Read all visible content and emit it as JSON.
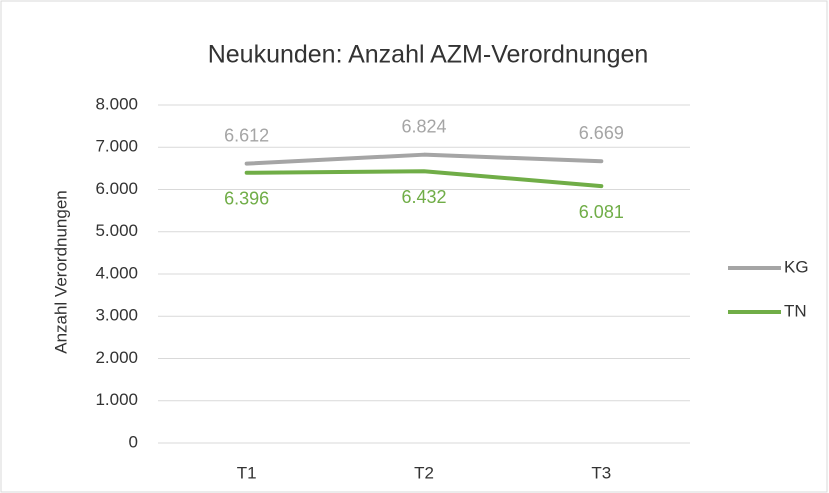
{
  "chart_data": {
    "type": "line",
    "title": "Neukunden: Anzahl AZM-Verordnungen",
    "y_label": "Anzahl Verordnungen",
    "categories": [
      "T1",
      "T2",
      "T3"
    ],
    "series": [
      {
        "name": "KG",
        "color": "#a5a5a5",
        "values": [
          6612,
          6824,
          6669
        ],
        "value_labels": [
          "6.612",
          "6.824",
          "6.669"
        ]
      },
      {
        "name": "TN",
        "color": "#70ad47",
        "values": [
          6396,
          6432,
          6081
        ],
        "value_labels": [
          "6.396",
          "6.432",
          "6.081"
        ]
      }
    ],
    "ylim": [
      0,
      8000
    ],
    "yticks": [
      0,
      {
        "value": 1000,
        "label": "1.000"
      },
      {
        "value": 2000,
        "label": "2.000"
      },
      {
        "value": 3000,
        "label": "3.000"
      },
      {
        "value": 4000,
        "label": "4.000"
      },
      {
        "value": 5000,
        "label": "5.000"
      },
      {
        "value": 6000,
        "label": "6.000"
      },
      {
        "value": 7000,
        "label": "7.000"
      },
      {
        "value": 8000,
        "label": "8.000"
      }
    ],
    "grid": true,
    "legend": "right"
  }
}
